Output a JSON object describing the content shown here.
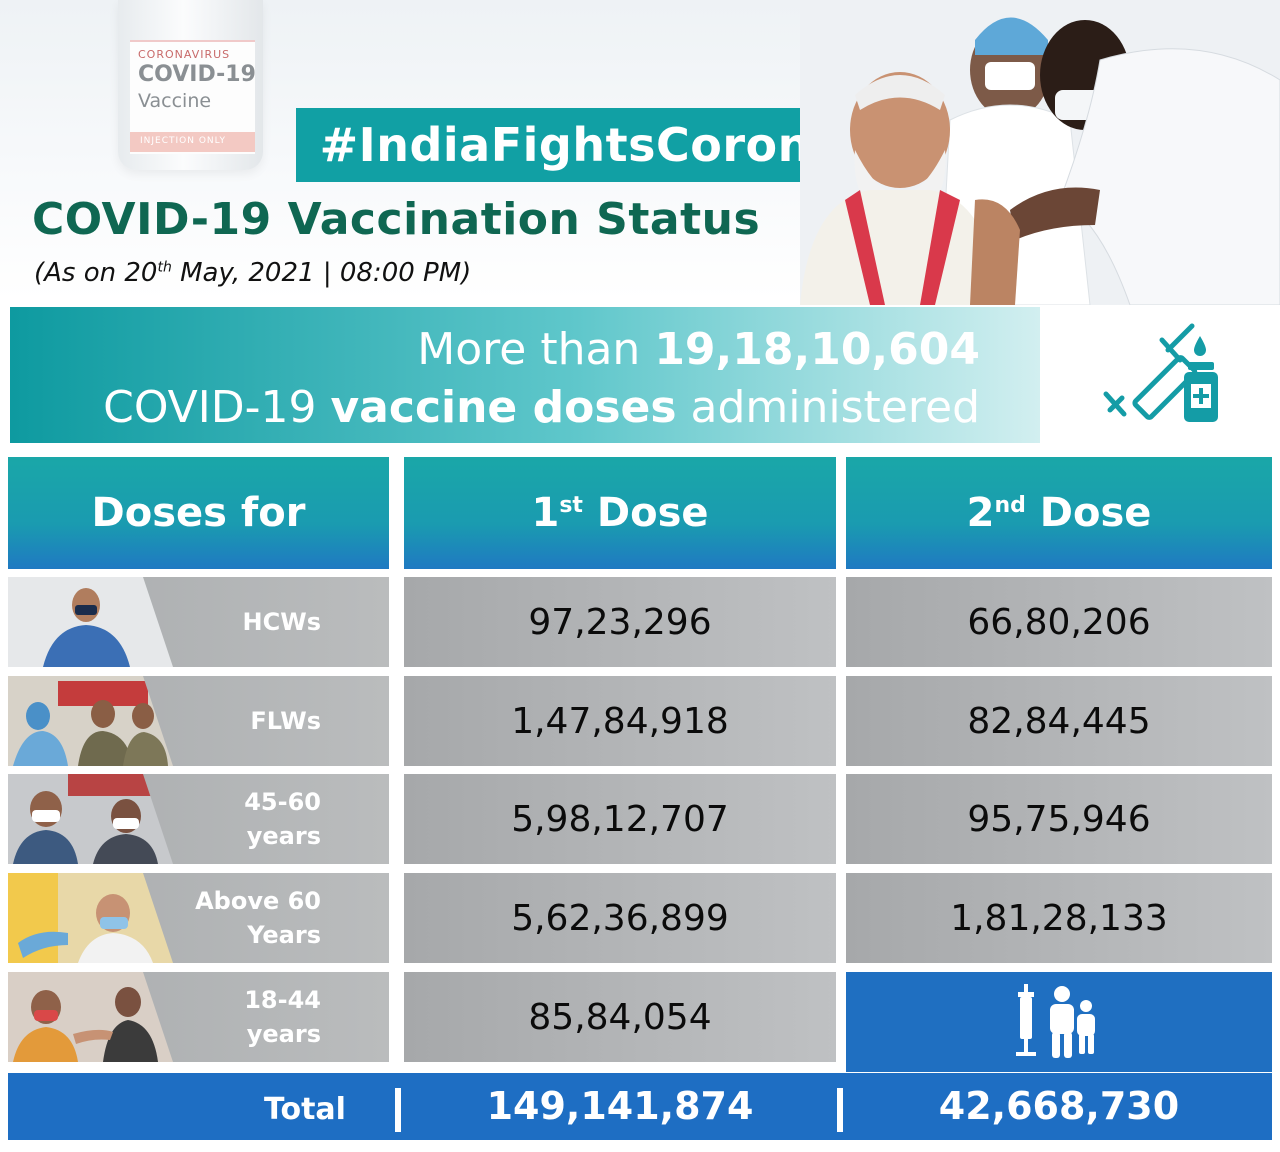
{
  "vial": {
    "line1": "CORONAVIRUS",
    "line2": "COVID-19",
    "line3": "Vaccine",
    "line4": "INJECTION ONLY"
  },
  "header": {
    "hashtag": "#IndiaFightsCorona",
    "title": "COVID-19 Vaccination Status",
    "subtitle_prefix": "(As on 20",
    "subtitle_sup": "th",
    "subtitle_suffix": " May, 2021 | 08:00 PM)"
  },
  "banner": {
    "line1_prefix": "More than ",
    "line1_count": "19,18,10,604",
    "line2_prefix": "COVID-19 ",
    "line2_bold": "vaccine doses",
    "line2_suffix": " administered",
    "icon": "syringe-vial-icon"
  },
  "table": {
    "headers": {
      "col0": "Doses for",
      "col1_num": "1",
      "col1_sup": "st",
      "col1_word": " Dose",
      "col2_num": "2",
      "col2_sup": "nd",
      "col2_word": " Dose"
    },
    "rows": [
      {
        "label1": "HCWs",
        "label2": "",
        "dose1": "97,23,296",
        "dose2": "66,80,206"
      },
      {
        "label1": "FLWs",
        "label2": "",
        "dose1": "1,47,84,918",
        "dose2": "82,84,445"
      },
      {
        "label1": "45-60",
        "label2": "years",
        "dose1": "5,98,12,707",
        "dose2": "95,75,946"
      },
      {
        "label1": "Above 60",
        "label2": "Years",
        "dose1": "5,62,36,899",
        "dose2": "1,81,28,133"
      },
      {
        "label1": "18-44",
        "label2": "years",
        "dose1": "85,84,054",
        "dose2": ""
      }
    ],
    "empty_cell_icon": "vaccination-people-icon",
    "total": {
      "label": "Total",
      "dose1": "149,141,874",
      "dose2": "42,668,730"
    }
  },
  "colors": {
    "teal": "#11a0a4",
    "dark_green": "#0f6752",
    "blue": "#1e6ec3",
    "grey": "#b3b5b7"
  }
}
